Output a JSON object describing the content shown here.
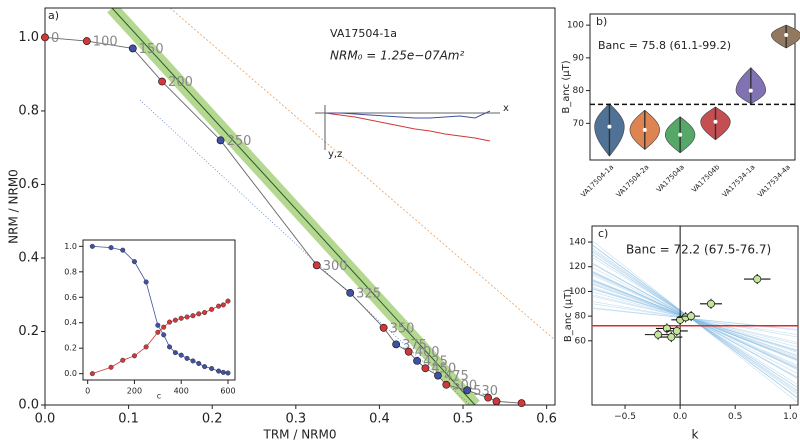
{
  "chart_data": [
    {
      "type": "line",
      "panel_label": "a)",
      "title": "VA17504-1a",
      "annotation": "NRM₀ = 1.25e−07Am²",
      "xlabel": "TRM / NRM0",
      "ylabel": "NRM / NRM0",
      "x": [
        0,
        0.05,
        0.105,
        0.14,
        0.21,
        0.325,
        0.365,
        0.405,
        0.42,
        0.435,
        0.445,
        0.455,
        0.47,
        0.48,
        0.505,
        0.53,
        0.54,
        0.57
      ],
      "values": [
        1.0,
        0.99,
        0.97,
        0.88,
        0.72,
        0.38,
        0.305,
        0.21,
        0.165,
        0.145,
        0.12,
        0.1,
        0.08,
        0.055,
        0.04,
        0.02,
        0.01,
        0.005
      ],
      "point_labels": [
        "0",
        "100",
        "150",
        "200",
        "250",
        "300",
        "325",
        "350",
        "375",
        "400",
        "425",
        "450",
        "475",
        "500",
        "530",
        null,
        null,
        null
      ],
      "colors": [
        "#d0393b",
        "#d0393b",
        "#3f51a3",
        "#d0393b",
        "#3f51a3",
        "#d0393b",
        "#3f51a3",
        "#d0393b",
        "#3f51a3",
        "#d0393b",
        "#3f51a3",
        "#d0393b",
        "#3f51a3",
        "#d0393b",
        "#3f51a3",
        "#d0393b",
        "#d0393b",
        "#d0393b"
      ],
      "inset_axis_labels": [
        "x",
        "y,z"
      ],
      "xlim": [
        0,
        0.61
      ],
      "ylim": [
        0,
        1.08
      ],
      "xticks": [
        {
          "value": 0,
          "label": "0.0"
        },
        {
          "value": 0.1,
          "label": "0.1"
        },
        {
          "value": 0.2,
          "label": "0.2"
        },
        {
          "value": 0.3,
          "label": "0.3"
        },
        {
          "value": 0.4,
          "label": "0.4"
        },
        {
          "value": 0.5,
          "label": "0.5"
        },
        {
          "value": 0.6,
          "label": "0.6"
        }
      ],
      "yticks": [
        {
          "value": 0,
          "label": "0.0"
        },
        {
          "value": 0.2,
          "label": "0.2"
        },
        {
          "value": 0.4,
          "label": "0.4"
        },
        {
          "value": 0.6,
          "label": "0.6"
        },
        {
          "value": 0.8,
          "label": "0.8"
        },
        {
          "value": 1.0,
          "label": "1.0"
        }
      ]
    },
    {
      "type": "line",
      "xlabel": "c",
      "x": [
        20,
        100,
        150,
        200,
        250,
        300,
        325,
        350,
        375,
        400,
        425,
        450,
        475,
        500,
        530,
        560,
        580,
        600
      ],
      "series": [
        {
          "name": "NRM",
          "color": "#3f51a3",
          "values": [
            1.0,
            0.99,
            0.97,
            0.88,
            0.72,
            0.38,
            0.305,
            0.21,
            0.165,
            0.145,
            0.12,
            0.1,
            0.08,
            0.055,
            0.04,
            0.02,
            0.01,
            0.005
          ]
        },
        {
          "name": "TRM",
          "color": "#d0393b",
          "values": [
            0,
            0.05,
            0.105,
            0.14,
            0.21,
            0.325,
            0.365,
            0.405,
            0.42,
            0.435,
            0.445,
            0.455,
            0.47,
            0.48,
            0.505,
            0.53,
            0.54,
            0.57
          ]
        }
      ],
      "xlim": [
        -20,
        630
      ],
      "ylim": [
        -0.05,
        1.05
      ],
      "xticks": [
        0,
        200,
        400,
        600
      ],
      "yticks": [
        {
          "value": 0,
          "label": "0.0"
        },
        {
          "value": 0.2,
          "label": "0.2"
        },
        {
          "value": 0.4,
          "label": "0.4"
        },
        {
          "value": 0.6,
          "label": "0.6"
        },
        {
          "value": 0.8,
          "label": "0.8"
        },
        {
          "value": 1.0,
          "label": "1.0"
        }
      ]
    },
    {
      "type": "violin",
      "panel_label": "b)",
      "annotation": "Banc = 75.8 (61.1-99.2)",
      "ylabel": "B_anc (μT)",
      "categories": [
        "VA17504-1a",
        "VA17504-2a",
        "VA17504a",
        "VA17504b",
        "VA17534-1a",
        "VA17534-4a"
      ],
      "values": [
        69,
        68,
        66.5,
        70.5,
        80,
        97
      ],
      "mins": [
        60,
        62,
        61,
        65,
        76,
        93
      ],
      "maxs": [
        76,
        74,
        72,
        75,
        87,
        100
      ],
      "colors": [
        "#4f7296",
        "#dd8452",
        "#55a868",
        "#c44e52",
        "#8172b3",
        "#937860"
      ],
      "reference": 75.8,
      "ylim": [
        58.8,
        103.4
      ],
      "yticks": [
        70,
        80,
        90,
        100
      ]
    },
    {
      "type": "scatter",
      "panel_label": "c)",
      "annotation": "Banc = 72.2 (67.5-76.7)",
      "ylabel": "B_anc (μT)",
      "xlabel": "k",
      "x": [
        -0.2,
        -0.12,
        -0.08,
        -0.03,
        0,
        0.05,
        0.1,
        0.28,
        0.7
      ],
      "values": [
        65,
        70,
        63,
        68,
        77,
        79,
        80,
        90,
        110
      ],
      "xerr": [
        0.12,
        0.1,
        0.1,
        0.1,
        0.08,
        0.08,
        0.08,
        0.1,
        0.12
      ],
      "color": "#c5e59a",
      "reference": 72.2,
      "reference_color": "#e0282b",
      "xlim": [
        -0.8,
        1.07
      ],
      "ylim": [
        8,
        153
      ],
      "xticks": [
        {
          "value": -0.5,
          "label": "−0.5"
        },
        {
          "value": 0,
          "label": "0.0"
        },
        {
          "value": 0.5,
          "label": "0.5"
        },
        {
          "value": 1.0,
          "label": "1.0"
        }
      ],
      "yticks": [
        60,
        80,
        100,
        120,
        140
      ]
    }
  ]
}
